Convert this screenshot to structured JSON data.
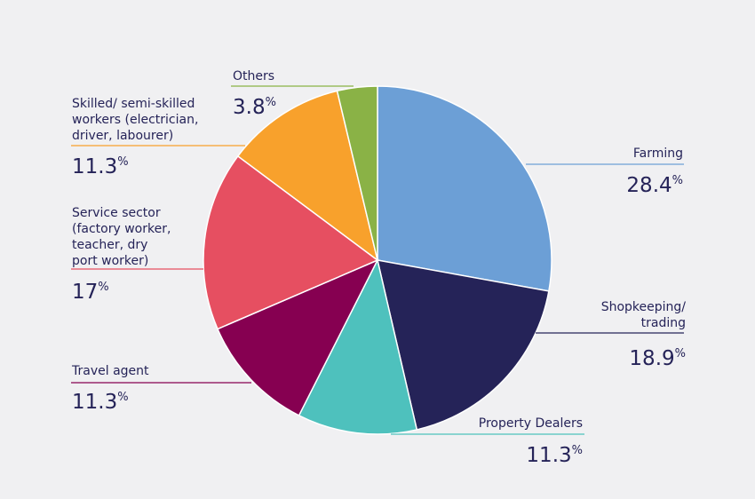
{
  "chart_data": {
    "type": "pie",
    "start_angle_deg": 0,
    "direction": "clockwise",
    "percent_symbol": "%",
    "series": [
      {
        "name": "Farming",
        "label_lines": [
          "Farming"
        ],
        "value": 28.4,
        "value_text": "28.4",
        "color": "#6c9fd6"
      },
      {
        "name": "Shopkeeping/ trading",
        "label_lines": [
          "Shopkeeping/",
          "trading"
        ],
        "value": 18.9,
        "value_text": "18.9",
        "color": "#252358"
      },
      {
        "name": "Property Dealers",
        "label_lines": [
          "Property Dealers"
        ],
        "value": 11.3,
        "value_text": "11.3",
        "color": "#4ec1bd"
      },
      {
        "name": "Travel agent",
        "label_lines": [
          "Travel agent"
        ],
        "value": 11.3,
        "value_text": "11.3",
        "color": "#860051"
      },
      {
        "name": "Service sector (factory worker, teacher, dry port worker)",
        "label_lines": [
          "Service sector",
          "(factory worker,",
          "teacher, dry",
          "port worker)"
        ],
        "value": 17,
        "value_text": "17",
        "color": "#e64f61"
      },
      {
        "name": "Skilled/ semi-skilled workers (electrician, driver, labourer)",
        "label_lines": [
          "Skilled/ semi-skilled",
          "workers (electrician,",
          "driver, labourer)"
        ],
        "value": 11.3,
        "value_text": "11.3",
        "color": "#f8a12c"
      },
      {
        "name": "Others",
        "label_lines": [
          "Others"
        ],
        "value": 3.8,
        "value_text": "3.8",
        "color": "#8ab246"
      }
    ]
  }
}
